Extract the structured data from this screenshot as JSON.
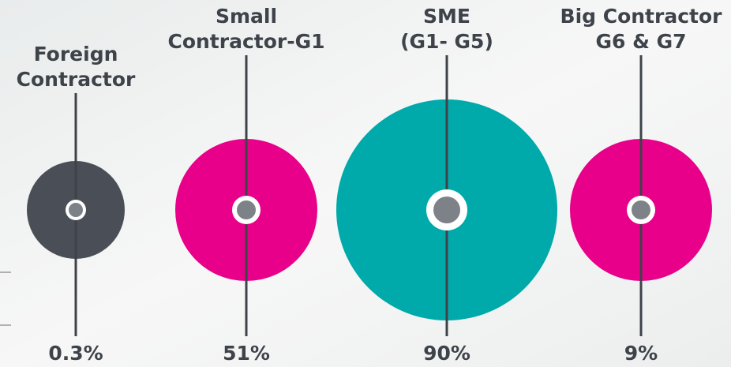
{
  "items": [
    {
      "label": [
        "Foreign",
        "Contractor"
      ],
      "value": "0.3%"
    },
    {
      "label": [
        "Small",
        "Contractor-G1"
      ],
      "value": "51%"
    },
    {
      "label": [
        "SME",
        "(G1- G5)"
      ],
      "value": "90%"
    },
    {
      "label": [
        "Big Contractor",
        "G6 & G7"
      ],
      "value": "9%"
    }
  ]
}
